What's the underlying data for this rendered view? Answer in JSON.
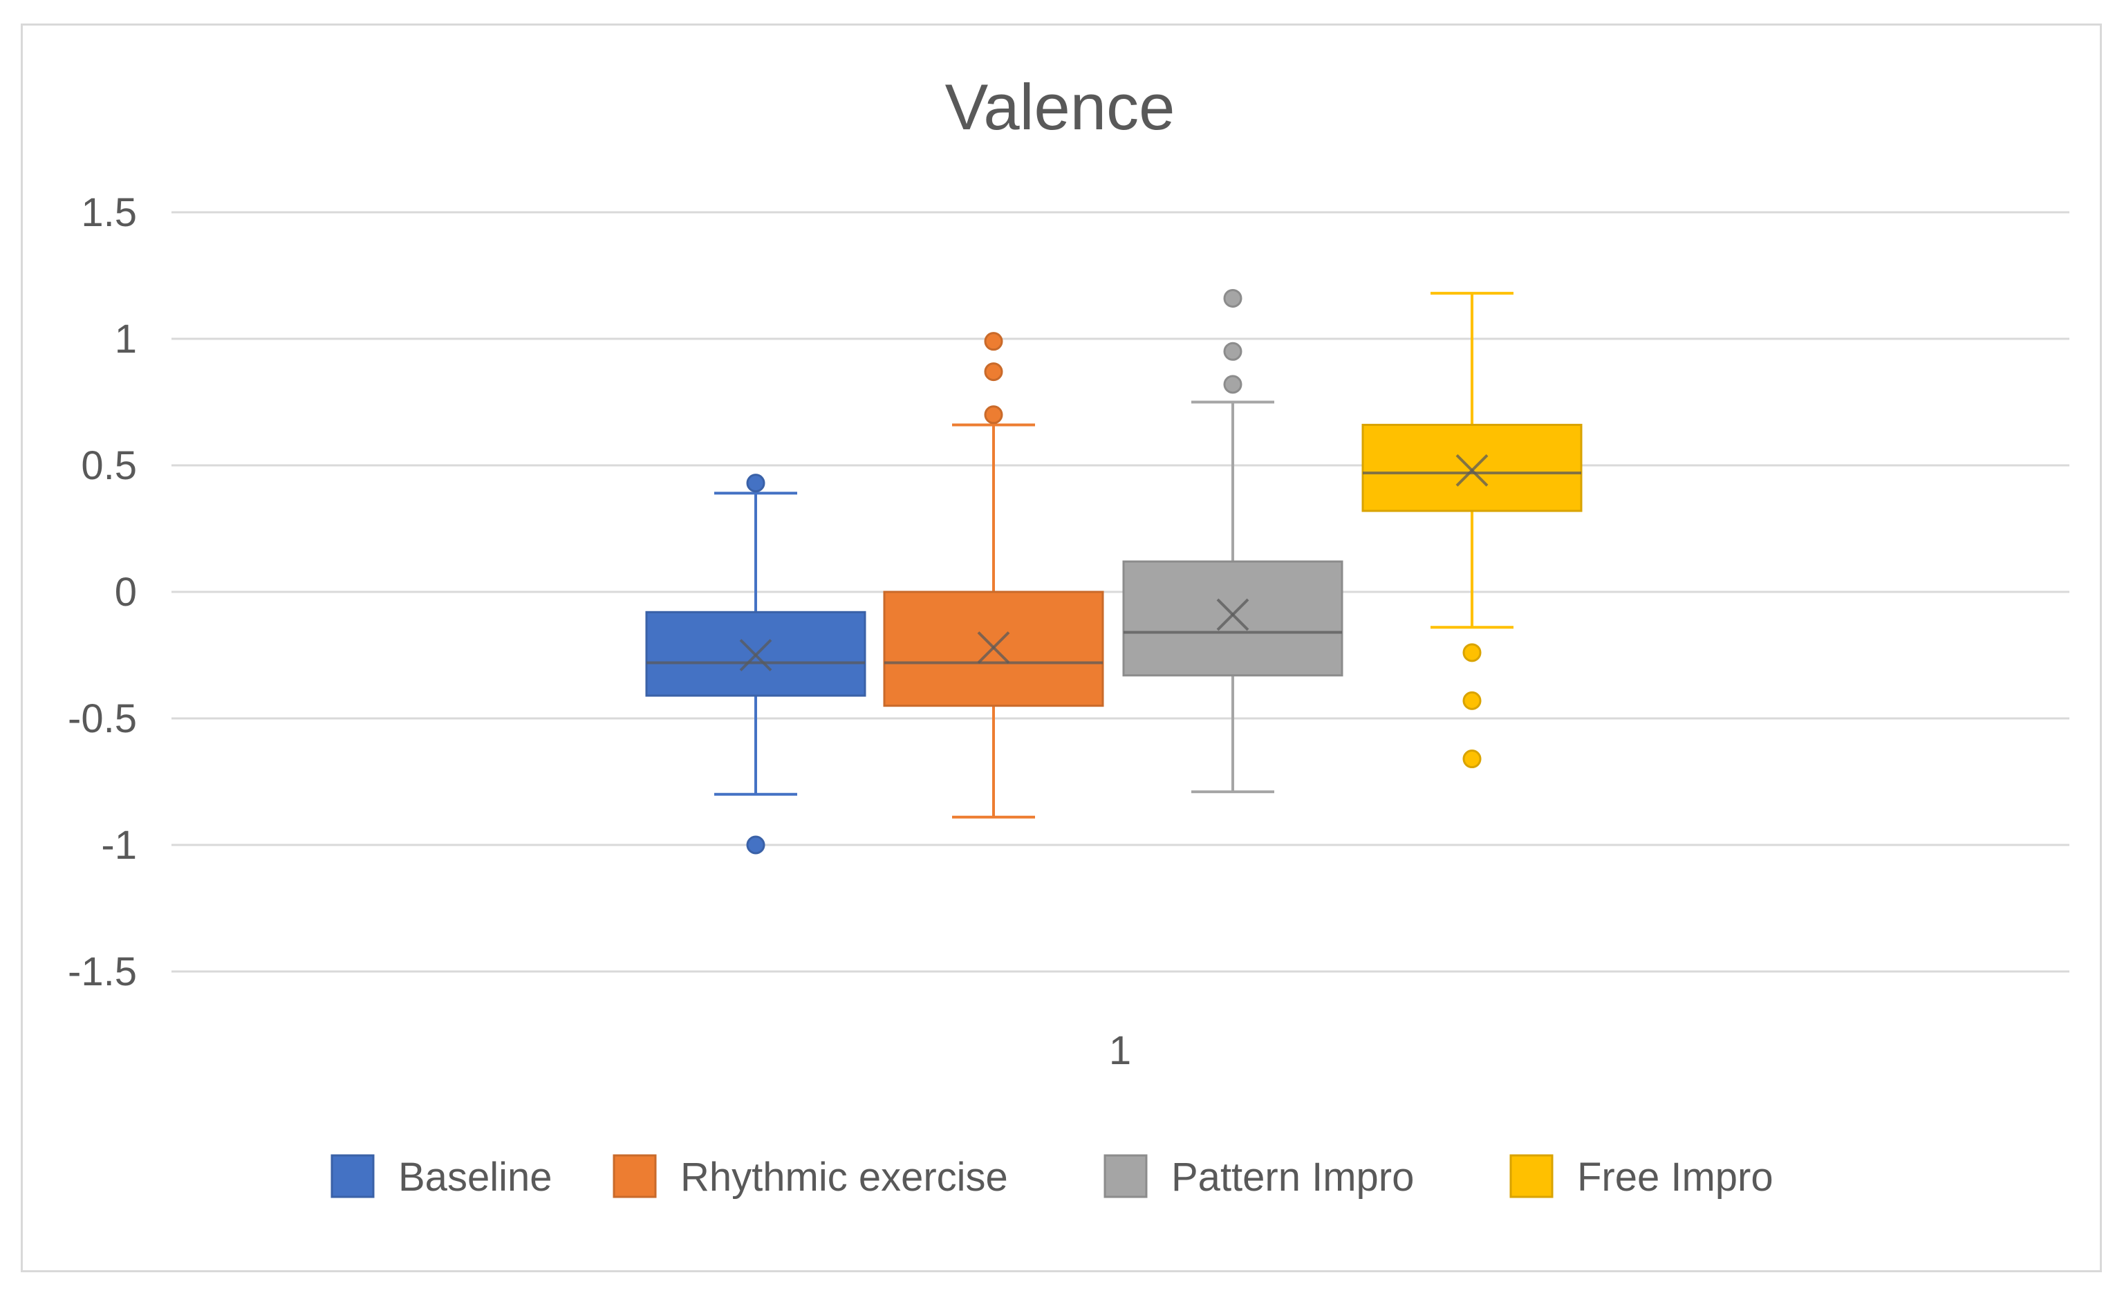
{
  "chart_data": {
    "type": "boxplot",
    "title": "Valence",
    "xlabel": "",
    "ylabel": "",
    "ylim": [
      -1.5,
      1.5
    ],
    "yticks": [
      1.5,
      1,
      0.5,
      0,
      -0.5,
      -1,
      -1.5
    ],
    "ytick_labels": [
      "1.5",
      "1",
      "0.5",
      "0",
      "-0.5",
      "-1",
      "-1.5"
    ],
    "categories": [
      "1"
    ],
    "grid": true,
    "legend_position": "bottom",
    "series": [
      {
        "name": "Baseline",
        "color": "#4472c4",
        "whisker_low": -0.8,
        "q1": -0.41,
        "median": -0.28,
        "q3": -0.08,
        "whisker_high": 0.39,
        "mean": -0.25,
        "outliers": [
          0.43,
          -1.0
        ]
      },
      {
        "name": "Rhythmic exercise",
        "color": "#ed7d31",
        "whisker_low": -0.89,
        "q1": -0.45,
        "median": -0.28,
        "q3": 0.0,
        "whisker_high": 0.66,
        "mean": -0.22,
        "outliers": [
          0.99,
          0.87,
          0.7
        ]
      },
      {
        "name": "Pattern Impro",
        "color": "#a5a5a5",
        "whisker_low": -0.79,
        "q1": -0.33,
        "median": -0.16,
        "q3": 0.12,
        "whisker_high": 0.75,
        "mean": -0.09,
        "outliers": [
          1.16,
          0.95,
          0.82
        ]
      },
      {
        "name": "Free Impro",
        "color": "#ffc000",
        "whisker_low": -0.14,
        "q1": 0.32,
        "median": 0.47,
        "q3": 0.66,
        "whisker_high": 1.18,
        "mean": 0.48,
        "outliers": [
          -0.24,
          -0.43,
          -0.66
        ]
      }
    ]
  }
}
